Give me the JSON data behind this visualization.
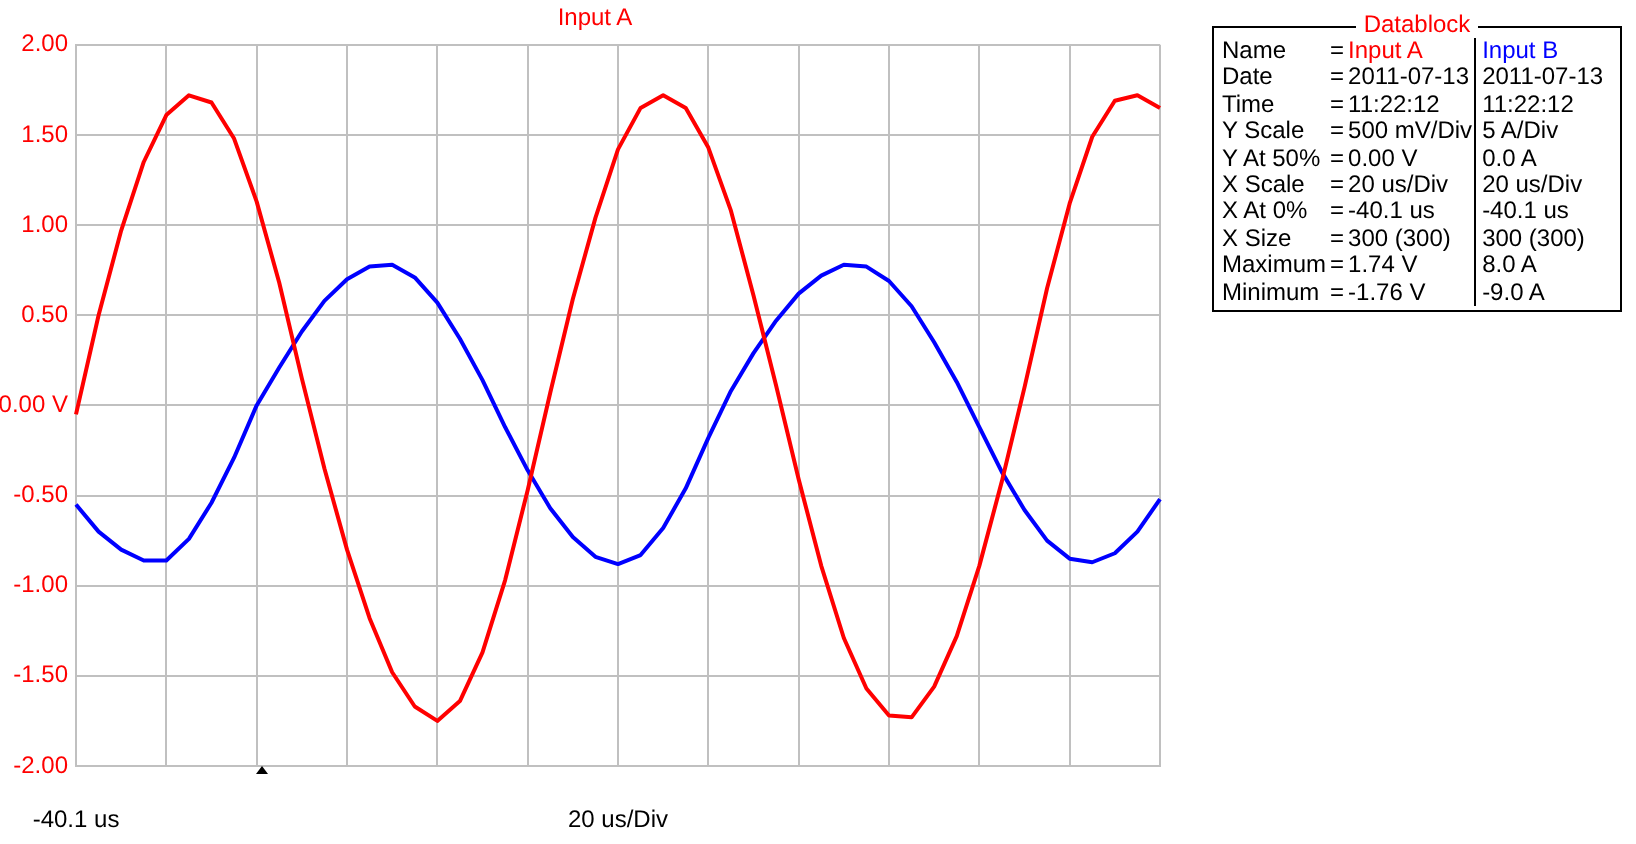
{
  "chart_data": {
    "type": "line",
    "title": "Input A",
    "categories": [
      null,
      null,
      null,
      null,
      null,
      null,
      null,
      null,
      null,
      null,
      null,
      null,
      null,
      null,
      null,
      null,
      null,
      null,
      null,
      null,
      null,
      null,
      null,
      null,
      null,
      null,
      null,
      null,
      null,
      null,
      null,
      null,
      null,
      null,
      null,
      null,
      null,
      null,
      null,
      null,
      null,
      null,
      null,
      null,
      null,
      null,
      null,
      null,
      null
    ],
    "series": [
      {
        "name": "Input A",
        "color": "#ff0000",
        "values": [
          -0.05,
          0.5,
          0.97,
          1.35,
          1.61,
          1.72,
          1.68,
          1.48,
          1.13,
          0.68,
          0.15,
          -0.35,
          -0.8,
          -1.18,
          -1.48,
          -1.67,
          -1.75,
          -1.64,
          -1.37,
          -0.97,
          -0.47,
          0.07,
          0.59,
          1.04,
          1.42,
          1.65,
          1.72,
          1.65,
          1.43,
          1.08,
          0.61,
          0.11,
          -0.41,
          -0.89,
          -1.29,
          -1.57,
          -1.72,
          -1.73,
          -1.56,
          -1.28,
          -0.89,
          -0.42,
          0.1,
          0.65,
          1.12,
          1.49,
          1.69,
          1.72,
          1.65
        ]
      },
      {
        "name": "Input B",
        "color": "#0000ff",
        "values": [
          -0.55,
          -0.7,
          -0.8,
          -0.86,
          -0.86,
          -0.74,
          -0.54,
          -0.29,
          0.0,
          0.21,
          0.41,
          0.58,
          0.7,
          0.77,
          0.78,
          0.71,
          0.57,
          0.37,
          0.14,
          -0.12,
          -0.36,
          -0.57,
          -0.73,
          -0.84,
          -0.88,
          -0.83,
          -0.68,
          -0.46,
          -0.18,
          0.08,
          0.29,
          0.47,
          0.62,
          0.72,
          0.78,
          0.77,
          0.69,
          0.55,
          0.35,
          0.13,
          -0.12,
          -0.37,
          -0.58,
          -0.75,
          -0.85,
          -0.87,
          -0.82,
          -0.7,
          -0.52
        ]
      }
    ],
    "ylim": [
      -2,
      2
    ],
    "yticks": [
      {
        "value": -2,
        "label": "-2.00"
      },
      {
        "value": -1.5,
        "label": "-1.50"
      },
      {
        "value": -1,
        "label": "-1.00"
      },
      {
        "value": -0.5,
        "label": "-0.50"
      },
      {
        "value": 0,
        "label": "0.00 V"
      },
      {
        "value": 0.5,
        "label": "0.50"
      },
      {
        "value": 1,
        "label": "1.00"
      },
      {
        "value": 1.5,
        "label": "1.50"
      },
      {
        "value": 2,
        "label": "2.00"
      }
    ],
    "grid": true,
    "annotations": [
      "-40.1 us",
      "20 us/Div",
      "Datablock",
      "Name",
      "=",
      "Date",
      "=",
      "2011-07-13",
      "2011-07-13",
      "Time",
      "=",
      "11:22:12",
      "11:22:12",
      "Y Scale",
      "=",
      "500 mV/Div",
      "5 A/Div",
      "Y At 50%",
      "=",
      "0.00 V",
      "0.0 A",
      "X Scale",
      "=",
      "20 us/Div",
      "20 us/Div",
      "X At 0%",
      "=",
      "-40.1 us",
      "-40.1 us",
      "X Size",
      "=",
      "300 (300)",
      "300 (300)",
      "Maximum",
      "=",
      "1.74 V",
      "8.0 A",
      "Minimum",
      "=",
      "-1.76 V",
      "-9.0 A"
    ]
  }
}
